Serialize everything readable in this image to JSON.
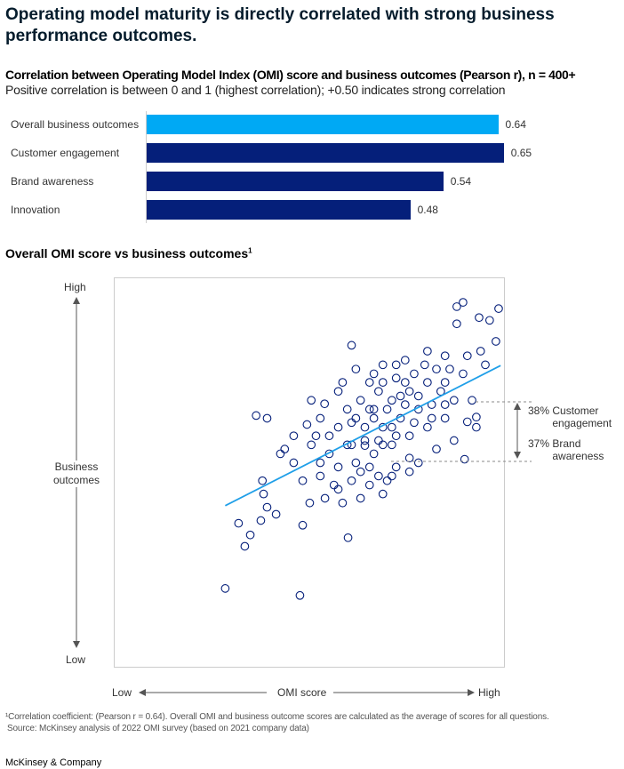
{
  "title": "Operating model maturity is directly correlated with strong business performance outcomes.",
  "bar_chart": {
    "title": "Correlation between Operating Model Index (OMI) score and business outcomes (Pearson r), n = 400+",
    "subtitle": "Positive correlation is between 0 and 1 (highest correlation); +0.50 indicates strong correlation"
  },
  "chart_data": [
    {
      "type": "bar",
      "orientation": "horizontal",
      "categories": [
        "Overall business outcomes",
        "Customer engagement",
        "Brand awareness",
        "Innovation"
      ],
      "values": [
        0.64,
        0.65,
        0.54,
        0.48
      ],
      "value_labels": [
        "0.64",
        "0.65",
        "0.54",
        "0.48"
      ],
      "colors": [
        "#00a9f4",
        "#051f7a",
        "#051f7a",
        "#051f7a"
      ],
      "xlim": [
        0,
        1
      ]
    },
    {
      "type": "scatter",
      "title": "Overall OMI score vs business outcomes",
      "title_footnote": "1",
      "xlabel": "OMI score",
      "ylabel": "Business outcomes",
      "x_low": "Low",
      "x_high": "High",
      "y_low": "Low",
      "y_high": "High",
      "xlim": [
        0,
        100
      ],
      "ylim": [
        0,
        100
      ],
      "marker_color": "#051f7a",
      "trend_color": "#1f9fe8",
      "trendline": [
        [
          28.5,
          41.5
        ],
        [
          98.9,
          77.4
        ]
      ],
      "points": [
        [
          28.5,
          20.3
        ],
        [
          47.6,
          18.5
        ],
        [
          33.5,
          31.1
        ],
        [
          34.9,
          34.0
        ],
        [
          59.9,
          33.3
        ],
        [
          36.4,
          64.6
        ],
        [
          39.2,
          63.9
        ],
        [
          60.8,
          82.6
        ],
        [
          87.7,
          92.5
        ],
        [
          98.4,
          92.0
        ],
        [
          93.4,
          89.7
        ],
        [
          97.7,
          83.6
        ],
        [
          87.7,
          88.1
        ],
        [
          38.0,
          47.9
        ],
        [
          38.3,
          44.5
        ],
        [
          39.2,
          41.1
        ],
        [
          41.5,
          39.3
        ],
        [
          37.6,
          37.7
        ],
        [
          31.9,
          37.0
        ],
        [
          50.5,
          68.5
        ],
        [
          49.4,
          62.3
        ],
        [
          46.0,
          59.4
        ],
        [
          43.7,
          56.0
        ],
        [
          48.3,
          47.9
        ],
        [
          50.1,
          42.2
        ],
        [
          54.0,
          43.4
        ],
        [
          58.5,
          42.2
        ],
        [
          63.1,
          43.4
        ],
        [
          68.8,
          44.5
        ],
        [
          69.9,
          47.9
        ],
        [
          77.9,
          52.5
        ],
        [
          89.7,
          53.4
        ],
        [
          92.7,
          61.6
        ],
        [
          91.6,
          68.5
        ],
        [
          95.0,
          77.6
        ],
        [
          89.3,
          75.3
        ],
        [
          84.7,
          79.9
        ],
        [
          80.2,
          81.1
        ],
        [
          74.5,
          78.8
        ],
        [
          68.8,
          77.6
        ],
        [
          65.4,
          73.1
        ],
        [
          57.4,
          70.8
        ],
        [
          52.8,
          63.9
        ],
        [
          55.1,
          59.4
        ],
        [
          59.7,
          57.1
        ],
        [
          64.2,
          61.6
        ],
        [
          66.5,
          66.2
        ],
        [
          71.1,
          68.5
        ],
        [
          75.6,
          70.8
        ],
        [
          80.2,
          73.1
        ],
        [
          84.7,
          73.1
        ],
        [
          87.0,
          68.5
        ],
        [
          84.7,
          63.9
        ],
        [
          80.2,
          61.6
        ],
        [
          75.6,
          59.4
        ],
        [
          71.1,
          57.1
        ],
        [
          66.5,
          54.8
        ],
        [
          61.9,
          52.5
        ],
        [
          57.4,
          51.4
        ],
        [
          52.8,
          52.5
        ],
        [
          73.3,
          63.9
        ],
        [
          68.8,
          61.6
        ],
        [
          64.2,
          58.2
        ],
        [
          61.9,
          63.9
        ],
        [
          59.7,
          66.2
        ],
        [
          63.1,
          68.5
        ],
        [
          67.7,
          70.8
        ],
        [
          72.2,
          74.2
        ],
        [
          76.8,
          75.3
        ],
        [
          82.5,
          76.5
        ],
        [
          77.9,
          66.2
        ],
        [
          74.5,
          67.4
        ],
        [
          71.1,
          61.6
        ],
        [
          67.7,
          58.2
        ],
        [
          65.4,
          51.4
        ],
        [
          67.7,
          49.1
        ],
        [
          72.2,
          51.4
        ],
        [
          75.6,
          53.7
        ],
        [
          82.5,
          56.0
        ],
        [
          87.0,
          58.2
        ],
        [
          90.4,
          63.0
        ],
        [
          92.7,
          64.2
        ],
        [
          55.1,
          54.8
        ],
        [
          50.5,
          57.1
        ],
        [
          52.8,
          49.1
        ],
        [
          56.3,
          46.8
        ],
        [
          60.8,
          47.9
        ],
        [
          65.4,
          46.8
        ],
        [
          46.0,
          52.5
        ],
        [
          42.6,
          54.8
        ],
        [
          51.7,
          59.4
        ],
        [
          57.4,
          61.6
        ],
        [
          60.8,
          62.8
        ],
        [
          66.5,
          63.9
        ],
        [
          69.9,
          66.2
        ],
        [
          73.3,
          69.6
        ],
        [
          77.9,
          69.6
        ],
        [
          81.3,
          67.4
        ],
        [
          83.6,
          70.8
        ],
        [
          85.9,
          76.5
        ],
        [
          90.4,
          79.9
        ],
        [
          93.8,
          81.1
        ],
        [
          96.1,
          89.0
        ],
        [
          89.3,
          93.6
        ],
        [
          61.9,
          76.5
        ],
        [
          58.5,
          73.1
        ],
        [
          53.9,
          67.6
        ],
        [
          64.2,
          56.9
        ],
        [
          68.8,
          57.1
        ],
        [
          72.2,
          59.4
        ],
        [
          76.8,
          62.8
        ],
        [
          81.3,
          63.9
        ],
        [
          84.7,
          67.4
        ],
        [
          65.4,
          66.2
        ],
        [
          68.8,
          73.1
        ],
        [
          74.5,
          73.1
        ],
        [
          79.5,
          77.6
        ],
        [
          72.2,
          77.6
        ],
        [
          66.5,
          75.3
        ],
        [
          60.8,
          57.1
        ],
        [
          63.1,
          50.2
        ],
        [
          71.1,
          49.1
        ],
        [
          75.6,
          50.2
        ],
        [
          48.3,
          36.5
        ],
        [
          57.4,
          45.7
        ]
      ],
      "annotations": [
        {
          "pct": "38%",
          "label": "Customer engagement"
        },
        {
          "pct": "37%",
          "label": "Brand awareness"
        }
      ]
    }
  ],
  "footnotes": [
    "¹Correlation coefficient: (Pearson r = 0.64). Overall OMI and business outcome scores are calculated as the average of scores for all questions.",
    "Source: McKinsey analysis of 2022 OMI survey (based on 2021 company data)"
  ],
  "brand": "McKinsey & Company"
}
